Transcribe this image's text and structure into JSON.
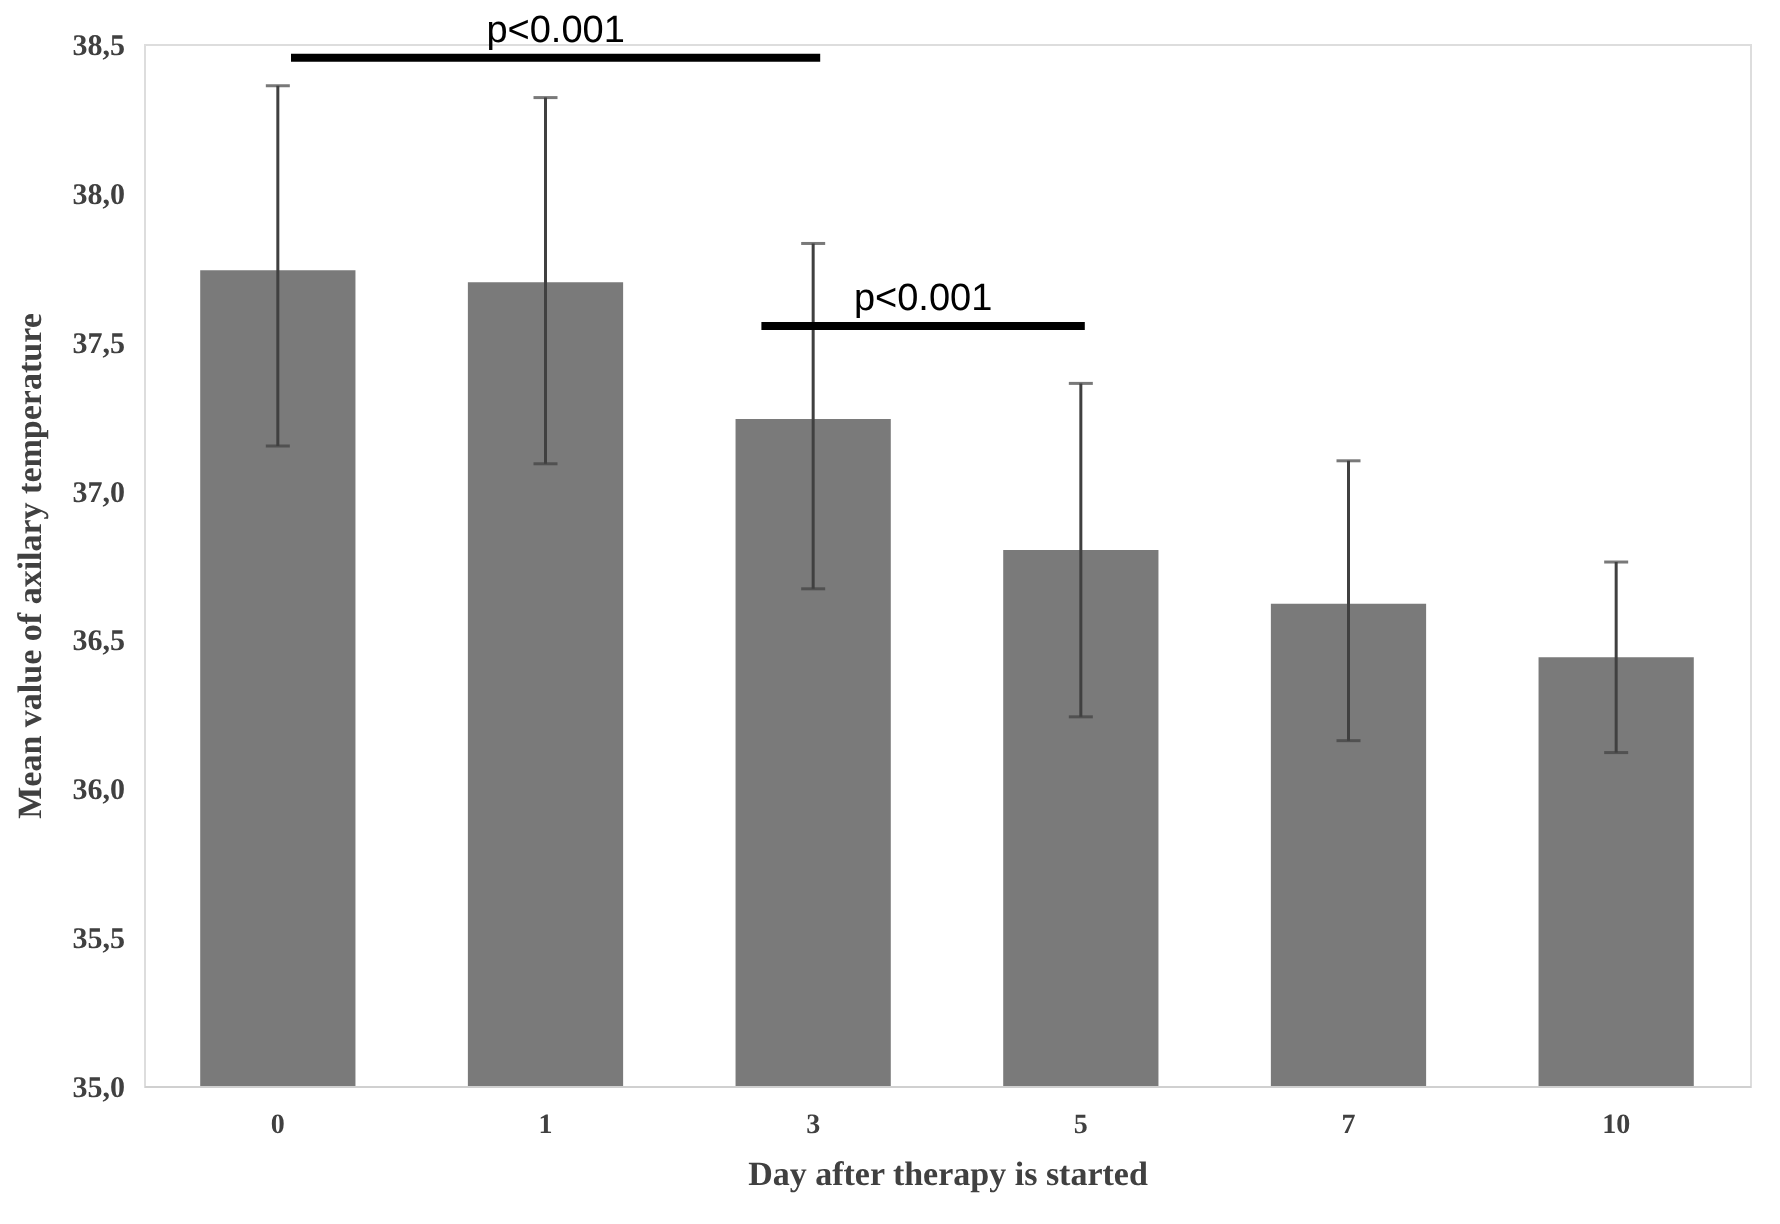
{
  "chart_data": {
    "type": "bar",
    "xlabel": "Day after therapy is started",
    "ylabel": "Mean value of axilary  temperature",
    "categories": [
      "0",
      "1",
      "3",
      "5",
      "7",
      "10"
    ],
    "values": [
      37.74,
      37.7,
      37.24,
      36.8,
      36.62,
      36.44
    ],
    "errors": [
      [
        37.15,
        38.36
      ],
      [
        37.09,
        38.32
      ],
      [
        36.67,
        37.83
      ],
      [
        36.24,
        37.36
      ],
      [
        36.16,
        37.1
      ],
      [
        36.12,
        36.76
      ]
    ],
    "color": "#7a7a7a",
    "ylim": [
      35.0,
      38.5
    ],
    "yticks": [
      {
        "value": 35.0,
        "label": "35,0"
      },
      {
        "value": 35.5,
        "label": "35,5"
      },
      {
        "value": 36.0,
        "label": "36,0"
      },
      {
        "value": 36.5,
        "label": "36,5"
      },
      {
        "value": 37.0,
        "label": "37,0"
      },
      {
        "value": 37.5,
        "label": "37,5"
      },
      {
        "value": 38.0,
        "label": "38,0"
      },
      {
        "value": 38.5,
        "label": "38,5"
      }
    ],
    "grid": false,
    "annotations": [
      "p<0.001",
      "p<0.001"
    ]
  }
}
